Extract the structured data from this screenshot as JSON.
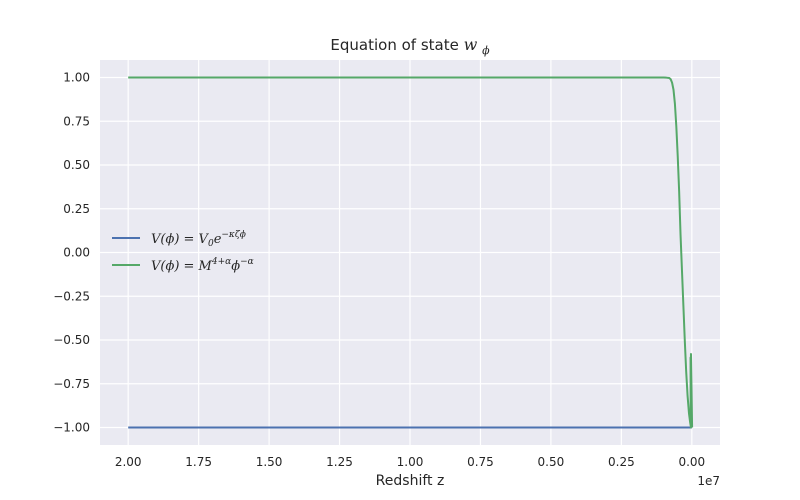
{
  "chart_data": {
    "type": "line",
    "title": "Equation of state",
    "title_symbol": "w",
    "title_subscript": "ϕ",
    "xlabel": "Redshift z",
    "ylabel": "",
    "x_offset_text": "1e7",
    "x_inverted": true,
    "xlim": [
      2.1,
      -0.1
    ],
    "ylim": [
      -1.1,
      1.1
    ],
    "x_ticks": [
      2.0,
      1.75,
      1.5,
      1.25,
      1.0,
      0.75,
      0.5,
      0.25,
      0.0
    ],
    "x_tick_labels": [
      "2.00",
      "1.75",
      "1.50",
      "1.25",
      "1.00",
      "0.75",
      "0.50",
      "0.25",
      "0.00"
    ],
    "y_ticks": [
      1.0,
      0.75,
      0.5,
      0.25,
      0.0,
      -0.25,
      -0.5,
      -0.75,
      -1.0
    ],
    "y_tick_labels": [
      "1.00",
      "0.75",
      "0.50",
      "0.25",
      "0.00",
      "−0.25",
      "−0.50",
      "−0.75",
      "−1.00"
    ],
    "grid": true,
    "background": "#EAEAF2",
    "legend_position": "center-left",
    "series": [
      {
        "name": "V(ϕ) = V₀e^(−κζϕ)",
        "legend_parts": [
          "V(ϕ) = V",
          "0",
          "e",
          "−κζϕ"
        ],
        "color": "#4C72B0",
        "x": [
          2.0,
          1.0,
          0.1,
          0.0
        ],
        "y": [
          -1.0,
          -1.0,
          -1.0,
          -1.0
        ]
      },
      {
        "name": "V(ϕ) = M^(4+α)ϕ^(−α)",
        "legend_parts": [
          "V(ϕ) = M",
          "4+α",
          "ϕ",
          "−α"
        ],
        "color": "#55A868",
        "x": [
          2.0,
          1.0,
          0.5,
          0.1,
          0.09,
          0.08,
          0.075,
          0.07,
          0.065,
          0.06,
          0.055,
          0.05,
          0.045,
          0.04,
          0.035,
          0.03,
          0.025,
          0.02,
          0.015,
          0.01,
          0.006,
          0.004,
          0.0045,
          0.004,
          0.0035,
          0.003,
          -0.001
        ],
        "y": [
          1.0,
          1.0,
          1.0,
          1.0,
          0.999,
          0.997,
          0.99,
          0.97,
          0.93,
          0.85,
          0.72,
          0.55,
          0.35,
          0.1,
          -0.1,
          -0.3,
          -0.5,
          -0.68,
          -0.82,
          -0.92,
          -0.97,
          -0.99,
          -0.6,
          -0.9,
          -1.0,
          -0.58,
          -1.0
        ]
      }
    ]
  }
}
